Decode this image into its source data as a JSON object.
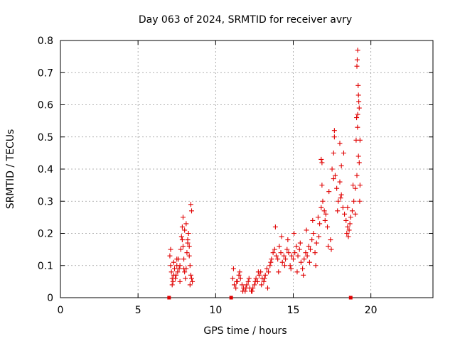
{
  "chart_data": {
    "type": "scatter",
    "title": "Day 063 of 2024, SRMTID for receiver avry",
    "xlabel": "GPS time / hours",
    "ylabel": "SRMTID / TECUs",
    "xlim": [
      0,
      24
    ],
    "ylim": [
      0,
      0.8
    ],
    "xticks": [
      0,
      5,
      10,
      15,
      20
    ],
    "xtick_labels": [
      "0",
      "5",
      "10",
      "15",
      "20"
    ],
    "yticks": [
      0,
      0.1,
      0.2,
      0.3,
      0.4,
      0.5,
      0.6,
      0.7,
      0.8
    ],
    "ytick_labels": [
      "0",
      "0.1",
      "0.2",
      "0.3",
      "0.4",
      "0.5",
      "0.6",
      "0.7",
      "0.8"
    ],
    "grid": true,
    "marker": "plus",
    "color": "#e00000",
    "series": [
      {
        "name": "SRMTID",
        "x": [
          7.05,
          7.1,
          7.15,
          7.2,
          7.25,
          7.3,
          7.35,
          7.4,
          7.45,
          7.5,
          7.55,
          7.6,
          7.65,
          7.7,
          7.75,
          7.8,
          7.85,
          7.9,
          7.95,
          8.0,
          8.05,
          8.1,
          8.15,
          8.2,
          8.25,
          8.3,
          8.35,
          8.4,
          8.45,
          8.5,
          7.1,
          7.2,
          7.3,
          7.5,
          7.7,
          7.9,
          8.0,
          8.1,
          8.2,
          8.3,
          8.4,
          8.45,
          8.35,
          7.95,
          7.85,
          11.1,
          11.2,
          11.3,
          11.4,
          11.5,
          11.6,
          11.7,
          11.8,
          11.9,
          12.0,
          12.1,
          12.2,
          12.3,
          12.4,
          12.5,
          12.6,
          12.7,
          12.8,
          12.9,
          13.0,
          13.1,
          13.2,
          13.3,
          13.4,
          13.5,
          13.6,
          13.7,
          11.15,
          11.35,
          11.55,
          11.75,
          11.95,
          12.15,
          12.35,
          12.55,
          12.75,
          12.95,
          13.15,
          13.35,
          13.55,
          13.8,
          13.9,
          14.0,
          14.1,
          14.2,
          14.3,
          14.4,
          14.5,
          14.6,
          14.7,
          14.8,
          14.9,
          15.0,
          15.1,
          15.2,
          15.3,
          15.4,
          15.5,
          15.6,
          15.7,
          15.8,
          15.9,
          16.0,
          16.1,
          16.2,
          16.3,
          16.4,
          16.5,
          13.85,
          14.05,
          14.25,
          14.45,
          14.65,
          14.85,
          15.05,
          15.25,
          15.45,
          15.65,
          15.85,
          16.05,
          16.25,
          16.45,
          16.6,
          16.7,
          16.8,
          16.9,
          17.0,
          17.1,
          17.2,
          17.3,
          17.4,
          17.5,
          17.6,
          17.7,
          17.8,
          17.9,
          18.0,
          18.1,
          18.2,
          18.3,
          18.4,
          18.5,
          18.6,
          18.7,
          18.8,
          18.9,
          19.0,
          19.1,
          19.2,
          19.3,
          16.65,
          16.85,
          17.05,
          17.25,
          17.45,
          17.65,
          17.85,
          18.05,
          18.25,
          18.45,
          18.65,
          18.85,
          19.05,
          19.15,
          19.25,
          19.1,
          19.12,
          19.15,
          19.18,
          19.2,
          19.22,
          19.25,
          19.08,
          19.14,
          19.28,
          16.8,
          16.85,
          17.6,
          17.65,
          18.0,
          18.1,
          18.5,
          18.55,
          19.0,
          19.3,
          7.0,
          11.0,
          18.7
        ],
        "y": [
          0.13,
          0.1,
          0.08,
          0.06,
          0.05,
          0.07,
          0.09,
          0.06,
          0.07,
          0.1,
          0.08,
          0.12,
          0.09,
          0.1,
          0.15,
          0.19,
          0.22,
          0.16,
          0.12,
          0.08,
          0.06,
          0.09,
          0.14,
          0.18,
          0.2,
          0.16,
          0.1,
          0.07,
          0.06,
          0.05,
          0.15,
          0.04,
          0.11,
          0.12,
          0.05,
          0.25,
          0.21,
          0.23,
          0.17,
          0.13,
          0.29,
          0.27,
          0.04,
          0.09,
          0.18,
          0.06,
          0.04,
          0.03,
          0.05,
          0.07,
          0.06,
          0.04,
          0.03,
          0.02,
          0.04,
          0.05,
          0.03,
          0.02,
          0.03,
          0.04,
          0.06,
          0.05,
          0.07,
          0.08,
          0.06,
          0.05,
          0.07,
          0.09,
          0.08,
          0.1,
          0.12,
          0.14,
          0.09,
          0.05,
          0.08,
          0.02,
          0.03,
          0.06,
          0.02,
          0.05,
          0.08,
          0.04,
          0.06,
          0.03,
          0.11,
          0.15,
          0.13,
          0.12,
          0.16,
          0.14,
          0.11,
          0.13,
          0.12,
          0.15,
          0.14,
          0.1,
          0.13,
          0.12,
          0.14,
          0.16,
          0.13,
          0.15,
          0.11,
          0.09,
          0.12,
          0.14,
          0.13,
          0.16,
          0.15,
          0.18,
          0.2,
          0.14,
          0.17,
          0.22,
          0.08,
          0.19,
          0.1,
          0.18,
          0.09,
          0.2,
          0.08,
          0.17,
          0.07,
          0.21,
          0.11,
          0.24,
          0.1,
          0.25,
          0.23,
          0.28,
          0.3,
          0.27,
          0.26,
          0.22,
          0.33,
          0.18,
          0.4,
          0.45,
          0.38,
          0.34,
          0.3,
          0.36,
          0.41,
          0.28,
          0.26,
          0.24,
          0.22,
          0.21,
          0.25,
          0.27,
          0.3,
          0.34,
          0.38,
          0.44,
          0.49,
          0.19,
          0.35,
          0.24,
          0.16,
          0.15,
          0.52,
          0.27,
          0.31,
          0.45,
          0.2,
          0.23,
          0.35,
          0.49,
          0.57,
          0.42,
          0.72,
          0.74,
          0.77,
          0.66,
          0.63,
          0.61,
          0.59,
          0.56,
          0.53,
          0.3,
          0.43,
          0.42,
          0.37,
          0.5,
          0.48,
          0.32,
          0.28,
          0.19,
          0.26,
          0.35,
          0.0,
          0.0,
          0.0
        ]
      }
    ]
  }
}
